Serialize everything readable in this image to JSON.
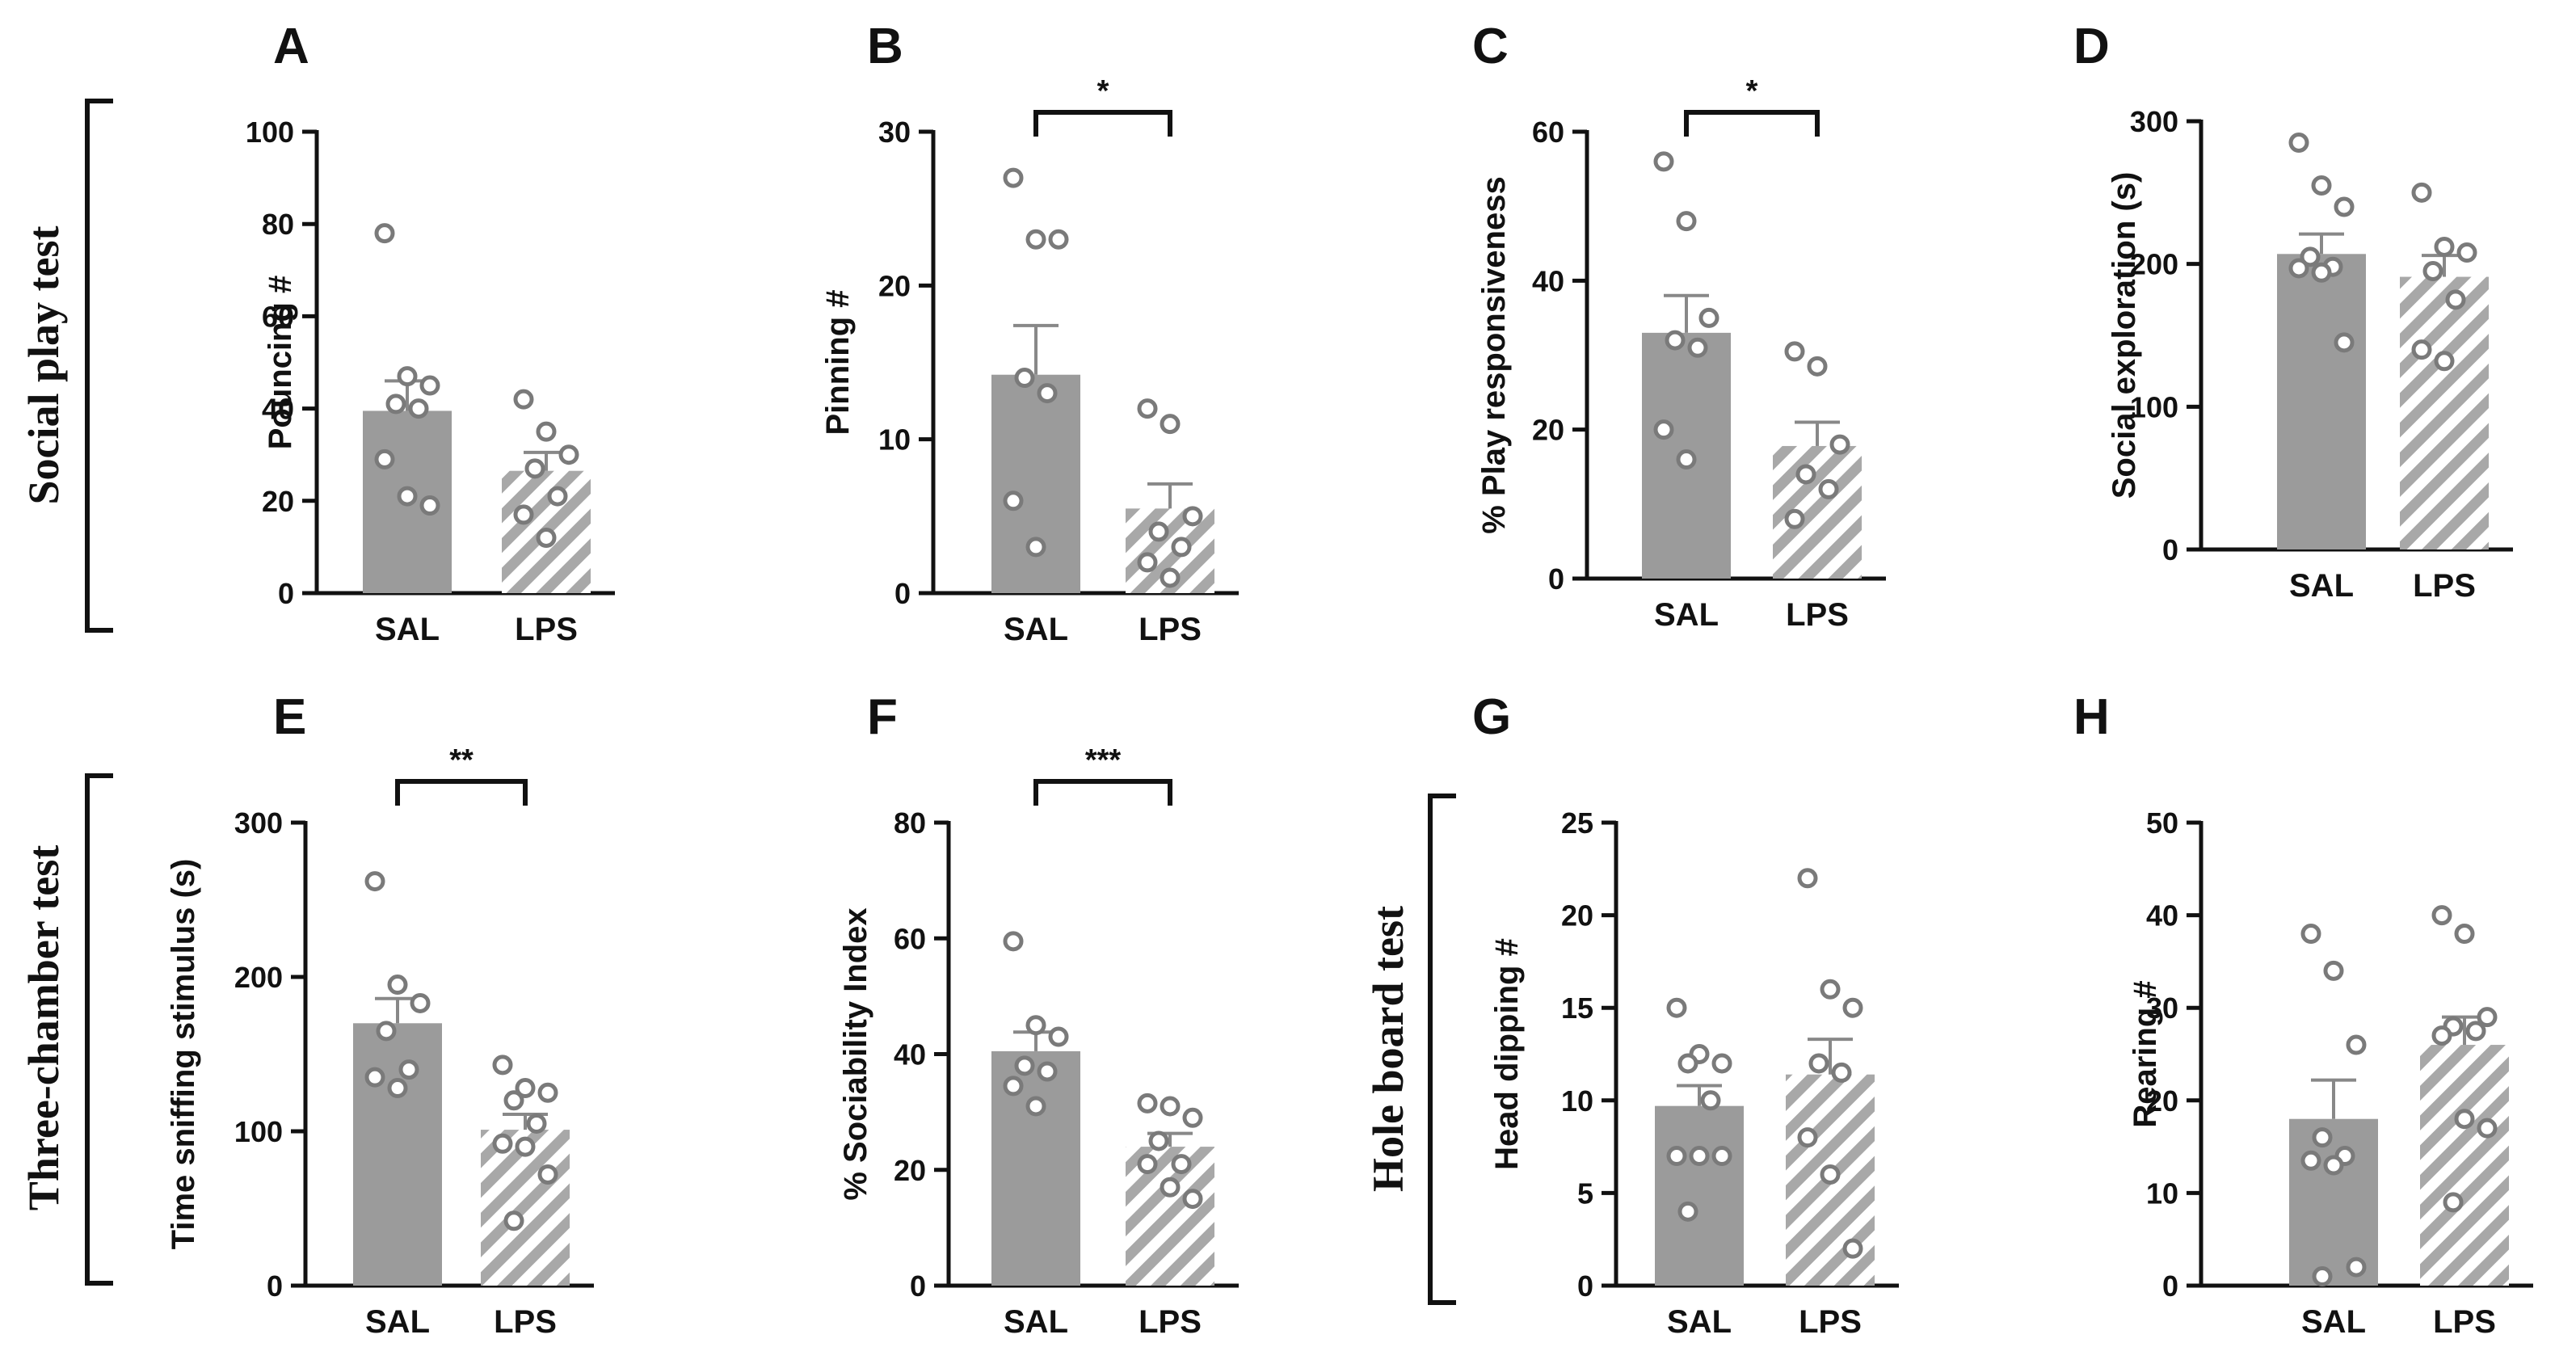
{
  "colors": {
    "sal_bar": "#9b9b9b",
    "lps_hatch": "#a8a8a8",
    "dot_edge": "#7a7a7a",
    "axis": "#111111"
  },
  "groups": [
    {
      "id": "social",
      "label": "Social play test"
    },
    {
      "id": "three",
      "label": "Three-chamber test"
    },
    {
      "id": "hole",
      "label": "Hole board test"
    }
  ],
  "chart_data": [
    {
      "panel": "A",
      "type": "bar",
      "ylabel": "Pouncing #",
      "categories": [
        "SAL",
        "LPS"
      ],
      "ylim": [
        0,
        100
      ],
      "yticks": [
        0,
        20,
        40,
        60,
        80,
        100
      ],
      "ticklabels": [
        "0",
        "20",
        "40",
        "60",
        "80",
        "100"
      ],
      "means": [
        39.5,
        26.5
      ],
      "sem": [
        6.5,
        4
      ],
      "points": [
        [
          78,
          47,
          45,
          41,
          40,
          29,
          21,
          19
        ],
        [
          42,
          35,
          30,
          27,
          21,
          17,
          12
        ]
      ],
      "significance": ""
    },
    {
      "panel": "B",
      "type": "bar",
      "ylabel": "Pinning #",
      "categories": [
        "SAL",
        "LPS"
      ],
      "ylim": [
        0,
        30
      ],
      "yticks": [
        0,
        10,
        20,
        30
      ],
      "ticklabels": [
        "0",
        "10",
        "20",
        "30"
      ],
      "means": [
        14.2,
        5.5
      ],
      "sem": [
        3.2,
        1.6
      ],
      "points": [
        [
          27,
          23,
          23,
          14,
          13,
          6,
          3
        ],
        [
          12,
          11,
          5,
          4,
          3,
          2,
          1
        ]
      ],
      "significance": "*"
    },
    {
      "panel": "C",
      "type": "bar",
      "ylabel": "% Play responsiveness",
      "categories": [
        "SAL",
        "LPS"
      ],
      "ylim": [
        0,
        60
      ],
      "yticks": [
        0,
        20,
        40,
        60
      ],
      "ticklabels": [
        "0",
        "20",
        "40",
        "60"
      ],
      "means": [
        33,
        17.8
      ],
      "sem": [
        5,
        3.2
      ],
      "points": [
        [
          56,
          48,
          35,
          32,
          31,
          20,
          16
        ],
        [
          30.5,
          28.5,
          18,
          14,
          12,
          8
        ]
      ],
      "significance": "*"
    },
    {
      "panel": "D",
      "type": "bar",
      "ylabel": "Social exploration (s)",
      "categories": [
        "SAL",
        "LPS"
      ],
      "ylim": [
        0,
        300
      ],
      "yticks": [
        0,
        100,
        200,
        300
      ],
      "ticklabels": [
        "0",
        "100",
        "200",
        "300"
      ],
      "means": [
        207,
        191
      ],
      "sem": [
        14,
        15
      ],
      "points": [
        [
          285,
          255,
          240,
          205,
          198,
          197,
          194,
          145
        ],
        [
          250,
          212,
          208,
          195,
          175,
          140,
          132
        ]
      ],
      "significance": ""
    },
    {
      "panel": "E",
      "type": "bar",
      "ylabel": "Time sniffing stimulus (s)",
      "categories": [
        "SAL",
        "LPS"
      ],
      "ylim": [
        0,
        300
      ],
      "yticks": [
        0,
        100,
        200,
        300
      ],
      "ticklabels": [
        "0",
        "100",
        "200",
        "300"
      ],
      "means": [
        170,
        101
      ],
      "sem": [
        16,
        10
      ],
      "points": [
        [
          262,
          195,
          183,
          165,
          140,
          135,
          128
        ],
        [
          143,
          128,
          125,
          120,
          105,
          92,
          90,
          72,
          42
        ]
      ],
      "significance": "**"
    },
    {
      "panel": "F",
      "type": "bar",
      "ylabel": "% Sociability Index",
      "categories": [
        "SAL",
        "LPS"
      ],
      "ylim": [
        0,
        80
      ],
      "yticks": [
        0,
        20,
        40,
        60,
        80
      ],
      "ticklabels": [
        "0",
        "20",
        "40",
        "60",
        "80"
      ],
      "means": [
        40.5,
        24
      ],
      "sem": [
        3.3,
        2.3
      ],
      "points": [
        [
          59.5,
          45,
          43,
          38,
          37,
          34.5,
          31
        ],
        [
          31.5,
          31,
          29,
          25,
          21,
          21,
          17,
          15
        ]
      ],
      "significance": "***"
    },
    {
      "panel": "G",
      "type": "bar",
      "ylabel": "Head dipping #",
      "categories": [
        "SAL",
        "LPS"
      ],
      "ylim": [
        0,
        25
      ],
      "yticks": [
        0,
        5,
        10,
        15,
        20,
        25
      ],
      "ticklabels": [
        "0",
        "5",
        "10",
        "15",
        "20",
        "25"
      ],
      "means": [
        9.7,
        11.4
      ],
      "sem": [
        1.1,
        1.9
      ],
      "points": [
        [
          15,
          12.5,
          12,
          12,
          10,
          7,
          7,
          7,
          4
        ],
        [
          22,
          16,
          15,
          12,
          11.5,
          8,
          6,
          2
        ]
      ],
      "significance": ""
    },
    {
      "panel": "H",
      "type": "bar",
      "ylabel": "Rearing #",
      "categories": [
        "SAL",
        "LPS"
      ],
      "ylim": [
        0,
        50
      ],
      "yticks": [
        0,
        10,
        20,
        30,
        40,
        50
      ],
      "ticklabels": [
        "0",
        "10",
        "20",
        "30",
        "40",
        "50"
      ],
      "means": [
        18,
        26
      ],
      "sem": [
        4.2,
        3
      ],
      "points": [
        [
          38,
          34,
          26,
          16,
          14,
          13.5,
          13,
          2,
          1
        ],
        [
          40,
          38,
          29,
          28,
          27.5,
          27,
          18,
          17,
          9
        ]
      ],
      "significance": ""
    }
  ]
}
